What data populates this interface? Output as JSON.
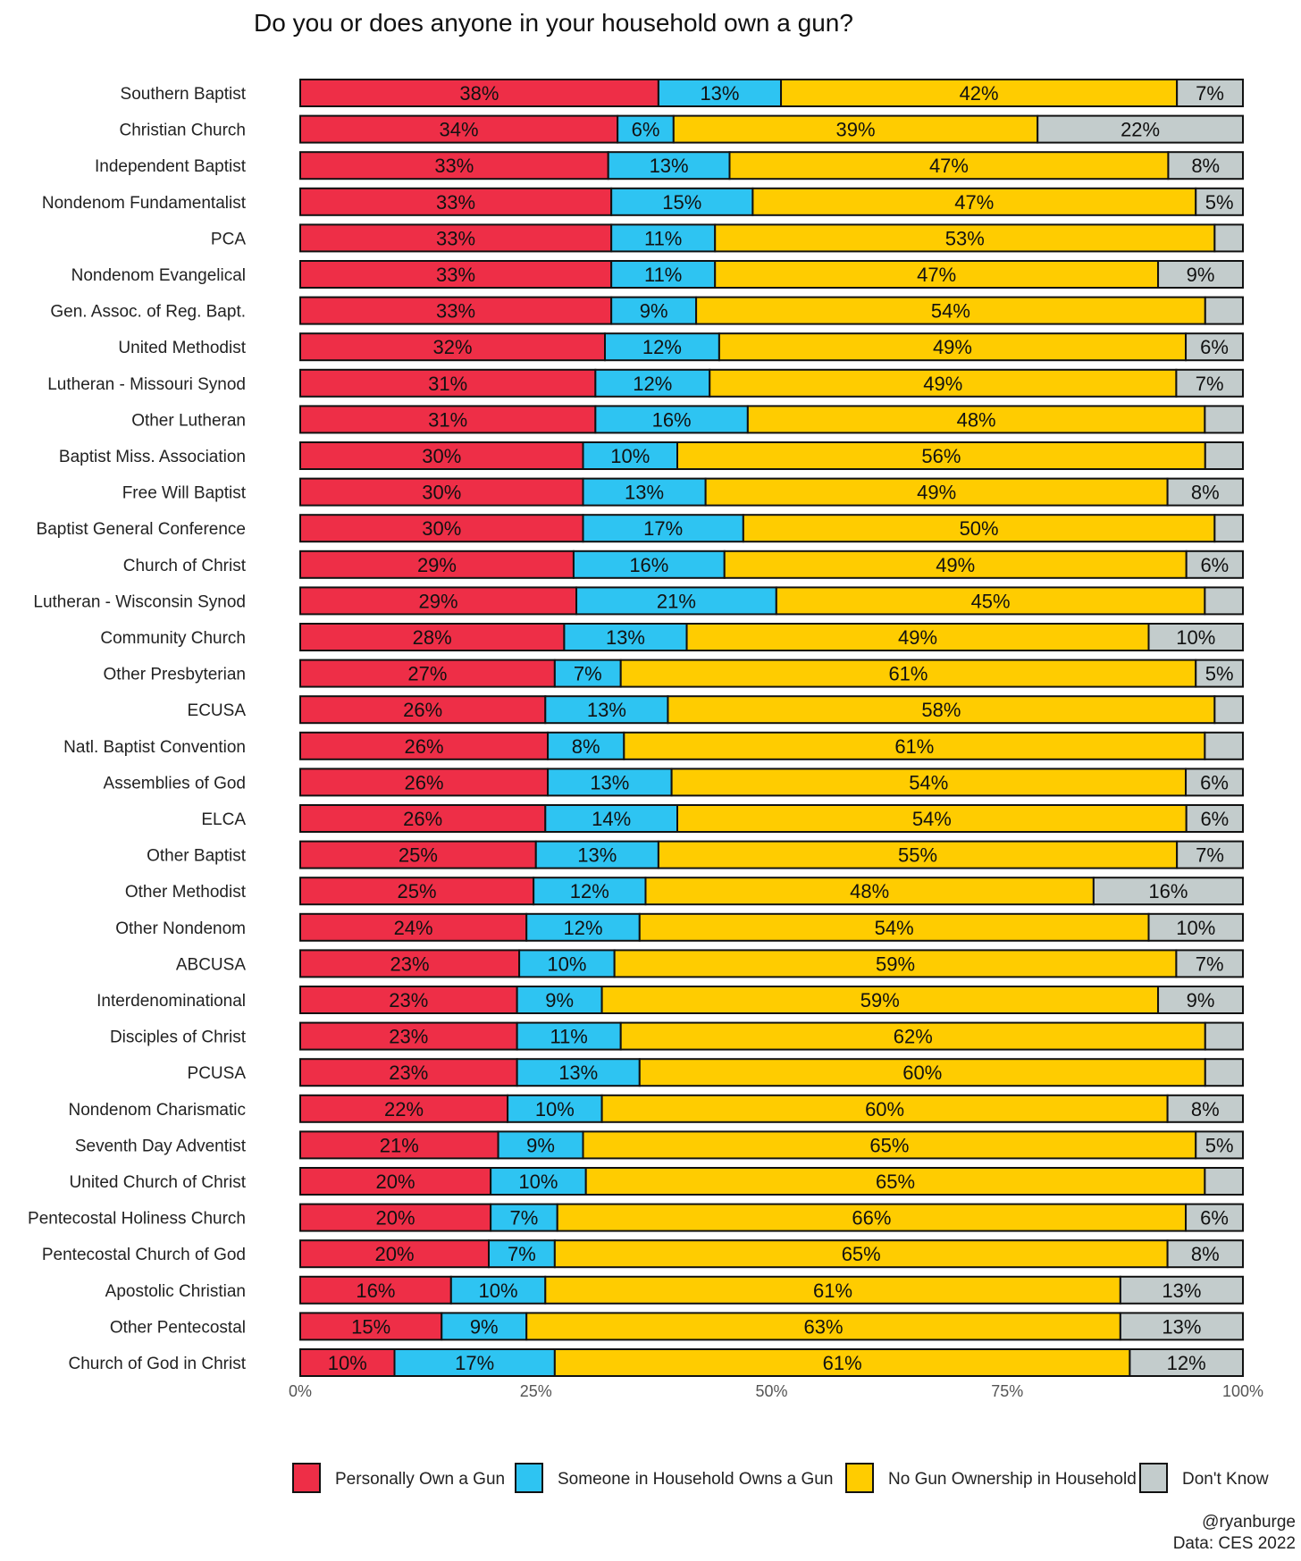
{
  "chart_data": {
    "type": "bar",
    "orientation": "horizontal",
    "stacked": true,
    "title": "Do you or does anyone in your household own a gun?",
    "xlabel": "",
    "ylabel": "",
    "xlim": [
      0,
      100
    ],
    "x_ticks": [
      "0%",
      "25%",
      "50%",
      "75%",
      "100%"
    ],
    "grid": false,
    "legend_position": "bottom",
    "categories": [
      "Southern Baptist",
      "Christian Church",
      "Independent Baptist",
      "Nondenom Fundamentalist",
      "PCA",
      "Nondenom Evangelical",
      "Gen. Assoc. of Reg. Bapt.",
      "United Methodist",
      "Lutheran - Missouri Synod",
      "Other Lutheran",
      "Baptist Miss. Association",
      "Free Will Baptist",
      "Baptist General Conference",
      "Church of Christ",
      "Lutheran - Wisconsin Synod",
      "Community Church",
      "Other Presbyterian",
      "ECUSA",
      "Natl. Baptist Convention",
      "Assemblies of God",
      "ELCA",
      "Other Baptist",
      "Other Methodist",
      "Other Nondenom",
      "ABCUSA",
      "Interdenominational",
      "Disciples of Christ",
      "PCUSA",
      "Nondenom Charismatic",
      "Seventh Day Adventist",
      "United Church of Christ",
      "Pentecostal Holiness Church",
      "Pentecostal Church of God",
      "Apostolic Christian",
      "Other Pentecostal",
      "Church of God in Christ"
    ],
    "series": [
      {
        "name": "Personally Own a Gun",
        "color": "#EE2E47",
        "values": [
          38,
          34,
          33,
          33,
          33,
          33,
          33,
          32,
          31,
          31,
          30,
          30,
          30,
          29,
          29,
          28,
          27,
          26,
          26,
          26,
          26,
          25,
          25,
          24,
          23,
          23,
          23,
          23,
          22,
          21,
          20,
          20,
          20,
          16,
          15,
          10
        ]
      },
      {
        "name": "Someone in Household Owns a Gun",
        "color": "#2EC4F2",
        "values": [
          13,
          6,
          13,
          15,
          11,
          11,
          9,
          12,
          12,
          16,
          10,
          13,
          17,
          16,
          21,
          13,
          7,
          13,
          8,
          13,
          14,
          13,
          12,
          12,
          10,
          9,
          11,
          13,
          10,
          9,
          10,
          7,
          7,
          10,
          9,
          17
        ]
      },
      {
        "name": "No Gun Ownership in Household",
        "color": "#FFCC00",
        "values": [
          42,
          39,
          47,
          47,
          53,
          47,
          54,
          49,
          49,
          48,
          56,
          49,
          50,
          49,
          45,
          49,
          61,
          58,
          61,
          54,
          54,
          55,
          48,
          54,
          59,
          59,
          62,
          60,
          60,
          65,
          65,
          66,
          65,
          61,
          63,
          61
        ]
      },
      {
        "name": "Don't Know",
        "color": "#C3CCCC",
        "values": [
          7,
          22,
          8,
          5,
          3,
          9,
          4,
          6,
          7,
          4,
          4,
          8,
          3,
          6,
          4,
          10,
          5,
          3,
          4,
          6,
          6,
          7,
          16,
          10,
          7,
          9,
          4,
          4,
          8,
          5,
          4,
          6,
          8,
          13,
          13,
          12
        ]
      }
    ],
    "label_min_value": 5
  },
  "credits": {
    "handle": "@ryanburge",
    "source": "Data: CES 2022"
  }
}
